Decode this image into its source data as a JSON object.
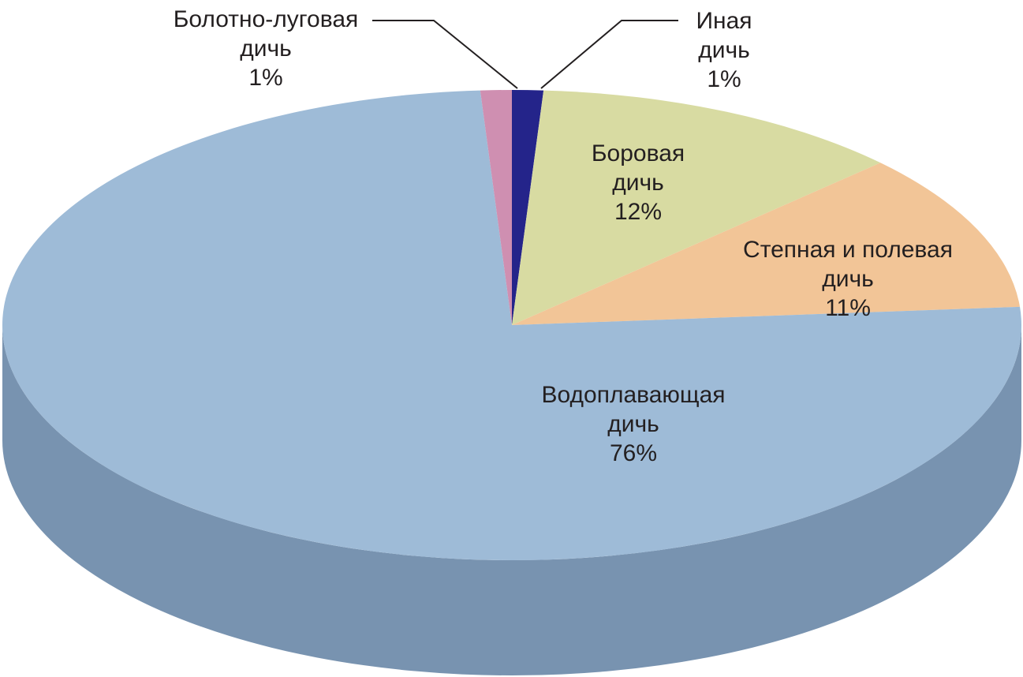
{
  "chart_data": {
    "type": "pie",
    "style": "3d",
    "start": "top, clockwise",
    "slices": [
      {
        "name": "Иная дичь",
        "lines": [
          "Иная",
          "дичь"
        ],
        "value": 1,
        "pct_label": "1%",
        "color": "#24248a",
        "side_color": "#1b1b68"
      },
      {
        "name": "Боровая дичь",
        "lines": [
          "Боровая",
          "дичь"
        ],
        "value": 12,
        "pct_label": "12%",
        "color": "#d8dba2",
        "side_color": "#a9ab7c"
      },
      {
        "name": "Степная и полевая дичь",
        "lines": [
          "Степная и полевая",
          "дичь"
        ],
        "value": 11,
        "pct_label": "11%",
        "color": "#f2c597",
        "side_color": "#c29a73"
      },
      {
        "name": "Водоплавающая дичь",
        "lines": [
          "Водоплавающая",
          "дичь"
        ],
        "value": 76,
        "pct_label": "76%",
        "color": "#9ebbd7",
        "side_color": "#7893b0"
      },
      {
        "name": "Болотно-луговая дичь",
        "lines": [
          "Болотно-луговая",
          "дичь"
        ],
        "value": 1,
        "pct_label": "1%",
        "color": "#cf8fb1",
        "side_color": "#a06c88"
      }
    ],
    "labels_with_leader_lines": [
      "Иная дичь",
      "Болотно-луговая дичь"
    ],
    "legend": "none",
    "title": ""
  }
}
